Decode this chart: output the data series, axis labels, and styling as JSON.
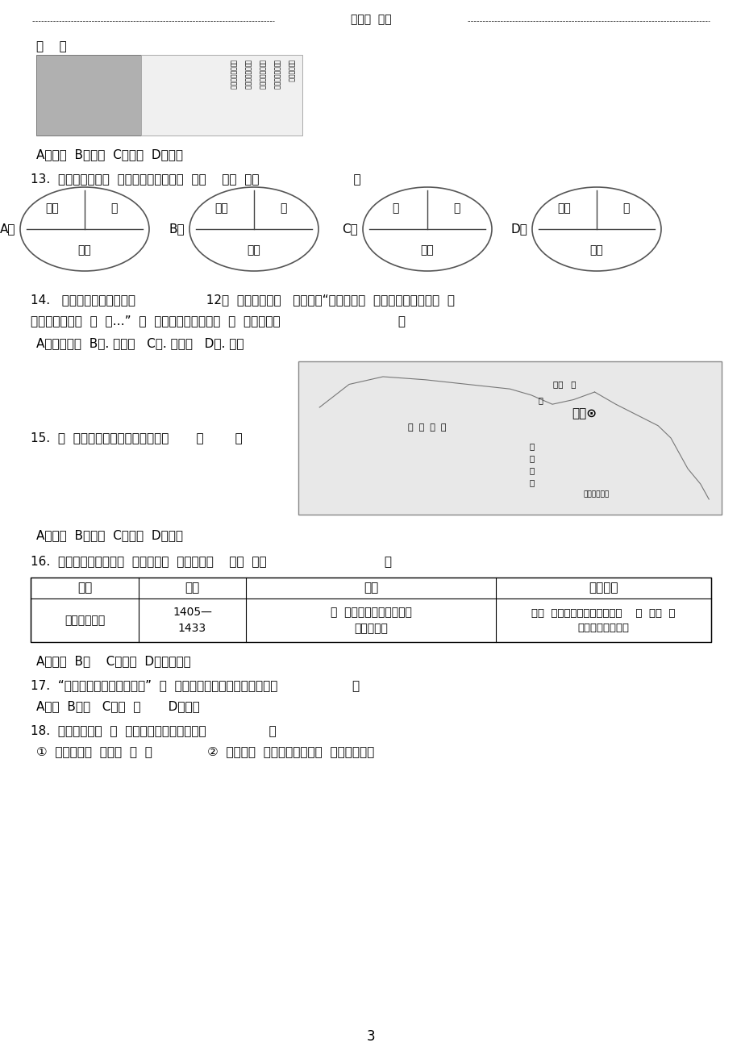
{
  "bg_color": "#ffffff",
  "header_text": "名校名  推荐",
  "page_number": "3",
  "q_paren": "（    ）",
  "q12_choices": "A．隋朝  B．唐朝  C．北宋  D．南宋",
  "q13_text": "13.  下列四幅两宋与  、金、西夏并立示意  中，    的一  是（                        ）",
  "ellipses": [
    {
      "label": "A．",
      "top_left": "西夏",
      "top_right": "辽",
      "bottom": "北宋"
    },
    {
      "label": "B．",
      "top_left": "西夏",
      "top_right": "金",
      "bottom": "北宋"
    },
    {
      "label": "C．",
      "top_left": "辽",
      "top_right": "金",
      "bottom": "南宋"
    },
    {
      "label": "D．",
      "top_left": "西夏",
      "top_right": "金",
      "bottom": "南宋"
    }
  ],
  "q14_line1": "14.   史文献《蒙古秘史》，                  12世  的蒙古草原有   的描述，“有星的天旋  着，众百姓反了，不  自",
  "q14_line2": "己的卧内，互相  掠  物…”  束  一局面、建立蒙古政  的  史人物是（                              ）",
  "q14_choices": "A．成吉思汗  B．. 元世祖   C．. 邘保机   D．. 元昊",
  "q15_text": "15.  如  反映了哪一朝代的行政制度？       （        ）",
  "q15_choices": "A．隋朝  B．唐朝  C．宋朝  D．元朝",
  "q16_text": "16.  下面是某同学整理的  和下西洋的  笔，其中出    的一  是（                              ）",
  "table_headers": [
    "目的",
    "时间",
    "影响",
    "所到地区"
  ],
  "table_row_col0": "提高明朝威望",
  "table_row_col1": "1405—\n1433",
  "table_row_col2": "开  了西太平洋与印度洋之\n的海上交通",
  "table_row_col3": "到达  欧三十多个国家和地区，    最  到达  海\n沿岐和欧洲西海岐",
  "q16_choices": "A．目的  B．    C．影响  D．所到地区",
  "q17_text": "17.  “封侯非我意，但愿海波平”  一  句表达了哪位名将的抗倂决心（                   ）",
  "q17_choices": "A．真  B．岳   C．威  光       D．成功",
  "q18_text": "18.  下列有关清朝  关  国政策的叙述正确的是（                ）",
  "q18_items": "①  关政策是指  格禁止  外  易              ②  关政策的  施有防御西方殖民  力入侵的目的",
  "portrait_texts": [
    "《题榆安起》",
    "山外青山楼外楼，",
    "西湖歌舞几时休。",
    "暖风熏得游人醉，",
    "只把杭州作许州。"
  ]
}
